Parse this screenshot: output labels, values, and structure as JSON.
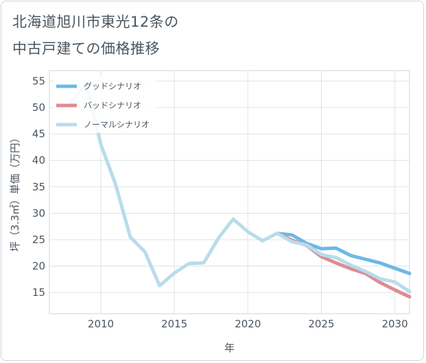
{
  "header": {
    "title_line1": "北海道旭川市東光12条の",
    "title_line2": "中古戸建ての価格推移"
  },
  "chart_data": {
    "type": "line",
    "xlabel": "年",
    "ylabel": "坪（3.3㎡）単価（万円）",
    "xlim": [
      2006.5,
      2031
    ],
    "ylim": [
      11,
      57
    ],
    "xticks": [
      2010,
      2015,
      2020,
      2025,
      2030
    ],
    "yticks": [
      15,
      20,
      25,
      30,
      35,
      40,
      45,
      50,
      55
    ],
    "grid": true,
    "legend_position": "top-left",
    "series": [
      {
        "name": "グッドシナリオ",
        "color": "#6db8e8",
        "x": [
          2022,
          2023,
          2024,
          2025,
          2026,
          2027,
          2028,
          2029,
          2030,
          2031
        ],
        "y": [
          26.2,
          25.9,
          24.3,
          23.3,
          23.4,
          22.0,
          21.3,
          20.6,
          19.6,
          18.6
        ]
      },
      {
        "name": "バッドシナリオ",
        "color": "#df8b93",
        "x": [
          2022,
          2023,
          2024,
          2025,
          2026,
          2027,
          2028,
          2029,
          2030,
          2031
        ],
        "y": [
          26.2,
          24.9,
          23.9,
          21.8,
          20.6,
          19.5,
          18.6,
          16.9,
          15.5,
          14.2
        ]
      },
      {
        "name": "ノーマルシナリオ",
        "color": "#b8dcea",
        "x": [
          2008,
          2009,
          2010,
          2011,
          2012,
          2013,
          2014,
          2015,
          2016,
          2017,
          2018,
          2019,
          2020,
          2021,
          2022,
          2023,
          2024,
          2025,
          2026,
          2027,
          2028,
          2029,
          2030,
          2031
        ],
        "y": [
          51.0,
          54.5,
          43.0,
          35.5,
          25.5,
          22.7,
          16.3,
          18.7,
          20.5,
          20.6,
          25.3,
          28.9,
          26.5,
          24.8,
          26.2,
          24.6,
          24.0,
          22.2,
          21.6,
          20.2,
          19.0,
          17.6,
          17.0,
          15.2
        ]
      }
    ]
  }
}
